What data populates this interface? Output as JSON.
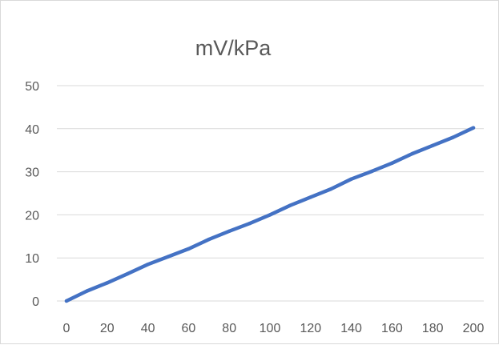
{
  "chart_data": {
    "type": "line",
    "title": "mV/kPa",
    "xlabel": "",
    "ylabel": "",
    "x": [
      0,
      10,
      20,
      30,
      40,
      50,
      60,
      70,
      80,
      90,
      100,
      110,
      120,
      130,
      140,
      150,
      160,
      170,
      180,
      190,
      200
    ],
    "x_ticks": [
      "0",
      "20",
      "40",
      "60",
      "80",
      "100",
      "120",
      "140",
      "160",
      "180",
      "200"
    ],
    "y_ticks": [
      "0",
      "10",
      "20",
      "30",
      "40",
      "50"
    ],
    "xlim": [
      0,
      200
    ],
    "ylim": [
      0,
      50
    ],
    "grid": true,
    "legend": "none",
    "series": [
      {
        "color": "#4472c4",
        "values": [
          0,
          2.3,
          4.2,
          6.3,
          8.5,
          10.3,
          12.1,
          14.3,
          16.2,
          18.0,
          20.0,
          22.2,
          24.1,
          26.0,
          28.3,
          30.1,
          32.0,
          34.2,
          36.1,
          38.0,
          40.2
        ]
      }
    ]
  }
}
